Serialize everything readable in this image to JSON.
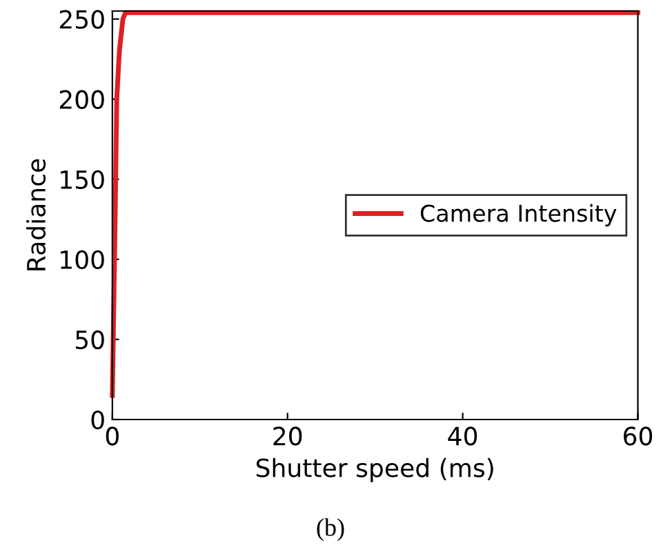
{
  "chart_data": {
    "type": "line",
    "xlabel": "Shutter speed (ms)",
    "ylabel": "Radiance",
    "xlim": [
      0,
      60
    ],
    "ylim": [
      0,
      255
    ],
    "xticks": [
      0,
      20,
      40,
      60
    ],
    "yticks": [
      0,
      50,
      100,
      150,
      200,
      250
    ],
    "grid": false,
    "legend": "right",
    "line_style": "solid",
    "marker": "none",
    "series": [
      {
        "name": "Camera Intensity",
        "color": "#e02020",
        "x": [
          0,
          0.1,
          0.3,
          0.5,
          0.8,
          1.2,
          1.5,
          60
        ],
        "values": [
          15,
          50,
          120,
          200,
          230,
          250,
          254,
          254
        ]
      }
    ],
    "annotations": [
      "(b)"
    ]
  }
}
